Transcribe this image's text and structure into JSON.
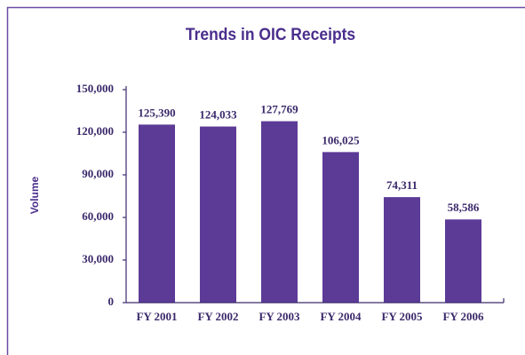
{
  "chart_data": {
    "type": "bar",
    "title": "Trends in OIC Receipts",
    "y_label": "Volume",
    "categories": [
      "FY 2001",
      "FY 2002",
      "FY 2003",
      "FY 2004",
      "FY 2005",
      "FY 2006"
    ],
    "values": [
      125390,
      124033,
      127769,
      106025,
      74311,
      58586
    ],
    "value_labels": [
      "125,390",
      "124,033",
      "127,769",
      "106,025",
      "74,311",
      "58,586"
    ],
    "color": "#5c3b97",
    "ylim": [
      0,
      150000
    ],
    "yticks": [
      0,
      {
        "value": 30000,
        "label": "30,000"
      },
      {
        "value": 60000,
        "label": "60,000"
      },
      {
        "value": 90000,
        "label": "90,000"
      },
      {
        "value": 120000,
        "label": "120,000"
      },
      {
        "value": 150000,
        "label": "150,000"
      }
    ],
    "grid": false
  }
}
